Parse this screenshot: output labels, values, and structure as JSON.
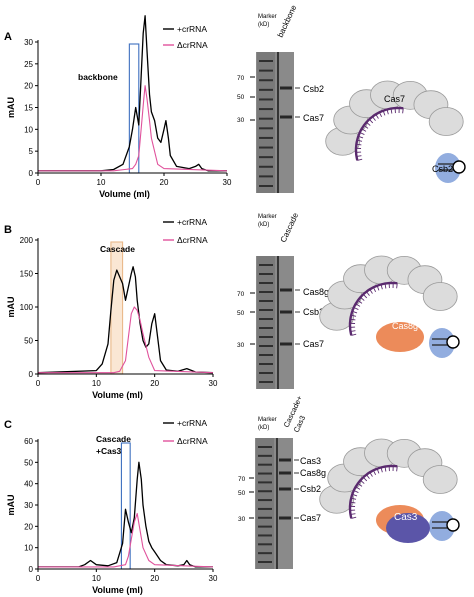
{
  "figure": {
    "panels": [
      {
        "letter": "A",
        "legend_plus": "+crRNA",
        "legend_minus": "ΔcrRNA",
        "annotation": "backbone",
        "annotation2": "",
        "gel_lane1": "Marker\n(kD)",
        "gel_lane2": "backbone",
        "gel_lane2b": "",
        "bands": [
          {
            "label": "Csb2",
            "kd_tick": "70"
          },
          {
            "label": "Cas7",
            "kd_tick": "50"
          }
        ],
        "structure_labels": [
          "Cas7",
          "Csb2"
        ]
      },
      {
        "letter": "B",
        "legend_plus": "+crRNA",
        "legend_minus": "ΔcrRNA",
        "annotation": "Cascade",
        "annotation2": "",
        "gel_lane1": "Marker\n(kD)",
        "gel_lane2": "Cascade",
        "gel_lane2b": "",
        "bands": [
          {
            "label": "Cas8g"
          },
          {
            "label": "Csb2"
          },
          {
            "label": "Cas7"
          }
        ],
        "structure_labels": [
          "Cas8g"
        ]
      },
      {
        "letter": "C",
        "legend_plus": "+crRNA",
        "legend_minus": "ΔcrRNA",
        "annotation": "Cascade",
        "annotation2": "+Cas3",
        "gel_lane1": "Marker\n(kD)",
        "gel_lane2": "Cascade+",
        "gel_lane2b": "Cas3",
        "bands": [
          {
            "label": "Cas3"
          },
          {
            "label": "Cas8g"
          },
          {
            "label": "Csb2"
          },
          {
            "label": "Cas7"
          }
        ],
        "structure_labels": [
          "Cas3"
        ]
      }
    ],
    "marker_ticks": [
      "70",
      "50",
      "30"
    ],
    "colors": {
      "plus_crrna": "#000000",
      "minus_crrna": "#e0529c",
      "box_blue": "#3e6fbf",
      "box_orange": "#f4c9a0",
      "cas7_grey": "#dcdcdc",
      "rna_purple": "#5a2a6e",
      "csb2_blue": "#7f9fd9",
      "cas8g_orange": "#ec8b5a",
      "cas3_purple": "#5b55a8"
    }
  },
  "chart_data": [
    {
      "type": "line",
      "panel": "A",
      "xlabel": "Volume (ml)",
      "ylabel": "mAU",
      "xlim": [
        0,
        30
      ],
      "ylim": [
        0,
        30
      ],
      "xticks": [
        0,
        10,
        20,
        30
      ],
      "yticks": [
        0,
        5,
        10,
        15,
        20,
        25,
        30
      ],
      "series": [
        {
          "name": "+crRNA",
          "x": [
            0,
            10,
            12,
            13.5,
            14.5,
            15,
            15.5,
            16,
            16.3,
            16.7,
            17,
            17.3,
            17.7,
            18,
            18.5,
            19,
            19.5,
            20,
            20.3,
            20.7,
            21,
            22,
            24,
            25,
            25.5,
            26,
            27,
            30
          ],
          "y": [
            0.5,
            0.5,
            0.8,
            2,
            6,
            10,
            15,
            11,
            20,
            32,
            36,
            28,
            18,
            14,
            12,
            8,
            7,
            10,
            12,
            8,
            4,
            1.5,
            1,
            1.5,
            2,
            1,
            0.5,
            0.5
          ]
        },
        {
          "name": "ΔcrRNA",
          "x": [
            0,
            12,
            15,
            15.5,
            16,
            16.5,
            16.8,
            17,
            17.3,
            17.7,
            18,
            19,
            20,
            30
          ],
          "y": [
            0.5,
            0.5,
            1,
            2,
            4,
            12,
            17,
            20,
            17,
            12,
            8,
            2,
            1,
            0.5
          ]
        }
      ]
    },
    {
      "type": "line",
      "panel": "B",
      "xlabel": "Volume (ml)",
      "ylabel": "mAU",
      "xlim": [
        0,
        30
      ],
      "ylim": [
        0,
        200
      ],
      "xticks": [
        0,
        10,
        20,
        30
      ],
      "yticks": [
        0,
        50,
        100,
        150,
        200
      ],
      "series": [
        {
          "name": "+crRNA",
          "x": [
            0,
            10,
            11,
            12,
            12.5,
            13,
            13.5,
            14,
            14.5,
            15,
            15.5,
            16,
            16.3,
            16.7,
            17,
            17.5,
            18,
            18.5,
            19,
            19.5,
            20,
            20.5,
            21,
            22,
            24,
            25.5,
            27,
            30
          ],
          "y": [
            2,
            5,
            15,
            45,
            95,
            140,
            155,
            145,
            135,
            110,
            130,
            150,
            160,
            145,
            110,
            75,
            50,
            40,
            45,
            75,
            90,
            55,
            20,
            6,
            4,
            8,
            3,
            2
          ]
        },
        {
          "name": "ΔcrRNA",
          "x": [
            0,
            13,
            14,
            15,
            15.5,
            16,
            16.5,
            17,
            17.5,
            18,
            19,
            20,
            30
          ],
          "y": [
            2,
            2,
            4,
            20,
            55,
            90,
            100,
            95,
            80,
            60,
            25,
            5,
            2
          ]
        }
      ]
    },
    {
      "type": "line",
      "panel": "C",
      "xlabel": "Volume (ml)",
      "ylabel": "mAU",
      "xlim": [
        0,
        30
      ],
      "ylim": [
        0,
        60
      ],
      "xticks": [
        0,
        10,
        20,
        30
      ],
      "yticks": [
        0,
        10,
        20,
        30,
        40,
        50,
        60
      ],
      "series": [
        {
          "name": "+crRNA",
          "x": [
            0,
            7,
            8,
            9,
            10,
            12,
            13.5,
            14.5,
            15,
            15.5,
            16,
            16.5,
            17,
            17.3,
            17.7,
            18,
            18.5,
            19,
            19.5,
            20,
            21,
            22,
            24,
            25,
            25.5,
            26,
            27,
            30
          ],
          "y": [
            1,
            1,
            2,
            4,
            2,
            1.5,
            3,
            12,
            28,
            22,
            17,
            24,
            42,
            50,
            42,
            30,
            20,
            13,
            10,
            8,
            4,
            2,
            1.5,
            2,
            4,
            2,
            1,
            1
          ]
        },
        {
          "name": "ΔcrRNA",
          "x": [
            0,
            13,
            15,
            15.5,
            16,
            16.5,
            17,
            17.5,
            18,
            19,
            20,
            30
          ],
          "y": [
            1,
            1,
            2,
            6,
            14,
            22,
            26,
            18,
            10,
            4,
            2,
            1
          ]
        }
      ]
    }
  ]
}
